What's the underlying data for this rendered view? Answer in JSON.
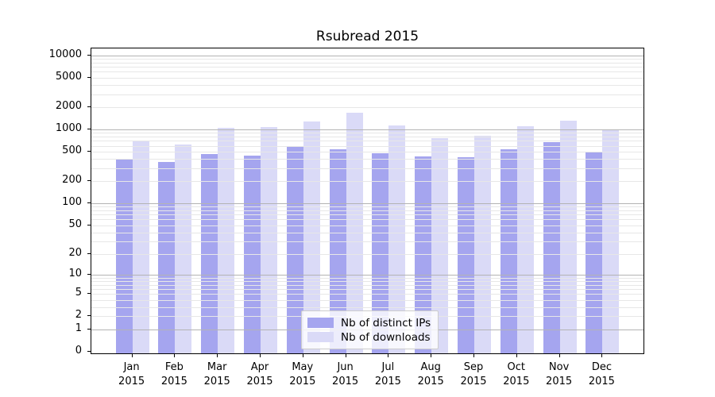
{
  "chart_data": {
    "type": "bar",
    "title": "Rsubread 2015",
    "x": {
      "categories": [
        "Jan",
        "Feb",
        "Mar",
        "Apr",
        "May",
        "Jun",
        "Jul",
        "Aug",
        "Sep",
        "Oct",
        "Nov",
        "Dec"
      ],
      "year": "2015"
    },
    "y": {
      "scale": "log10(value+1)",
      "ticks": [
        0,
        1,
        2,
        5,
        10,
        20,
        50,
        100,
        200,
        500,
        1000,
        2000,
        5000,
        10000
      ],
      "major_gridlines": [
        1,
        10,
        100,
        1000,
        10000
      ],
      "minor_gridline_decades": [
        1,
        10,
        100,
        1000
      ],
      "ylim_top": 13500,
      "grid": true
    },
    "series": [
      {
        "name": "Nb of distinct IPs",
        "color": "#a5a5ef",
        "values": [
          400,
          360,
          470,
          440,
          580,
          540,
          475,
          430,
          420,
          545,
          670,
          500
        ]
      },
      {
        "name": "Nb of downloads",
        "color": "#dadaf7",
        "values": [
          700,
          630,
          1050,
          1080,
          1290,
          1700,
          1120,
          770,
          830,
          1100,
          1310,
          970
        ]
      }
    ],
    "legend": {
      "position": "inside-bottom-center",
      "items": [
        "Nb of distinct IPs",
        "Nb of downloads"
      ]
    }
  },
  "style": {
    "background": "#ffffff",
    "axis_color": "#000000",
    "major_grid_color": "#b3b3b3",
    "minor_grid_color": "#e7e7e7",
    "bar_color_ips": "#a5a5ef",
    "bar_color_downloads": "#dadaf7",
    "text_color": "#000000"
  }
}
